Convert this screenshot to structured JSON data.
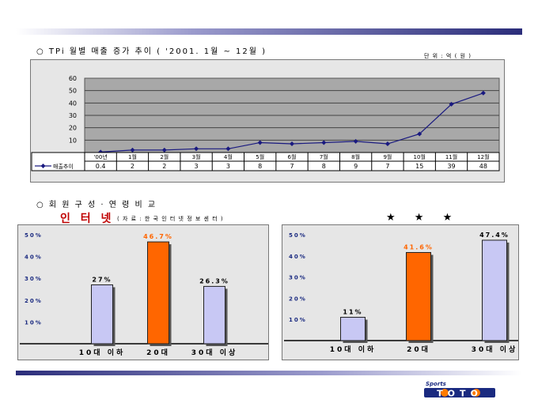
{
  "header": {
    "title": "○  TPi  월별  매출  증가  추이 ( '2001. 1월  ~  12월 )",
    "unit": "단 위 : 억 ( 원 )"
  },
  "section2": {
    "title": "○  회 원 구 성 · 연 령 비 교",
    "highlight_title": "인 터 넷",
    "source": "( 자 료 : 한 국 인 터 넷 정 보 센 터 )",
    "stars": "★ ★ ★"
  },
  "logo": {
    "top": "Sports",
    "text": "TOTO"
  },
  "colors": {
    "accent": "#2b2d7a",
    "line": "#1a1a80",
    "bar_blue": "#c8c8f4",
    "bar_orange": "#ff6600",
    "orange_text": "#ff6600"
  },
  "chart_data": [
    {
      "type": "line",
      "categories": [
        "'00년",
        "1월",
        "2월",
        "3월",
        "4월",
        "5월",
        "6월",
        "7월",
        "8월",
        "9월",
        "10월",
        "11월",
        "12월"
      ],
      "series": [
        {
          "name": "매출추이",
          "values": [
            0.4,
            2,
            2,
            3,
            3,
            8,
            7,
            8,
            9,
            7,
            15,
            39,
            48
          ]
        }
      ],
      "table_values": [
        "0.4",
        "2",
        "2",
        "3",
        "3",
        "8",
        "7",
        "8",
        "9",
        "7",
        "15",
        "39",
        "48"
      ],
      "yticks": [
        "60",
        "50",
        "40",
        "30",
        "20",
        "10",
        "-"
      ],
      "ylim": [
        0,
        60
      ],
      "grid": true,
      "legend": "bottom-left"
    },
    {
      "type": "bar",
      "categories": [
        "10대 이하",
        "20대",
        "30대 이상"
      ],
      "values": [
        27,
        46.7,
        26.3
      ],
      "value_labels": [
        "27%",
        "46.7%",
        "26.3%"
      ],
      "yticks": [
        "50%",
        "40%",
        "30%",
        "20%",
        "10%"
      ],
      "ylim": [
        0,
        50
      ],
      "grid": false
    },
    {
      "type": "bar",
      "categories": [
        "10대 이하",
        "20대",
        "30대 이상"
      ],
      "values": [
        11,
        41.6,
        47.4
      ],
      "value_labels": [
        "11%",
        "41.6%",
        "47.4%"
      ],
      "yticks": [
        "50%",
        "40%",
        "30%",
        "20%",
        "10%"
      ],
      "ylim": [
        0,
        50
      ],
      "grid": false
    }
  ]
}
